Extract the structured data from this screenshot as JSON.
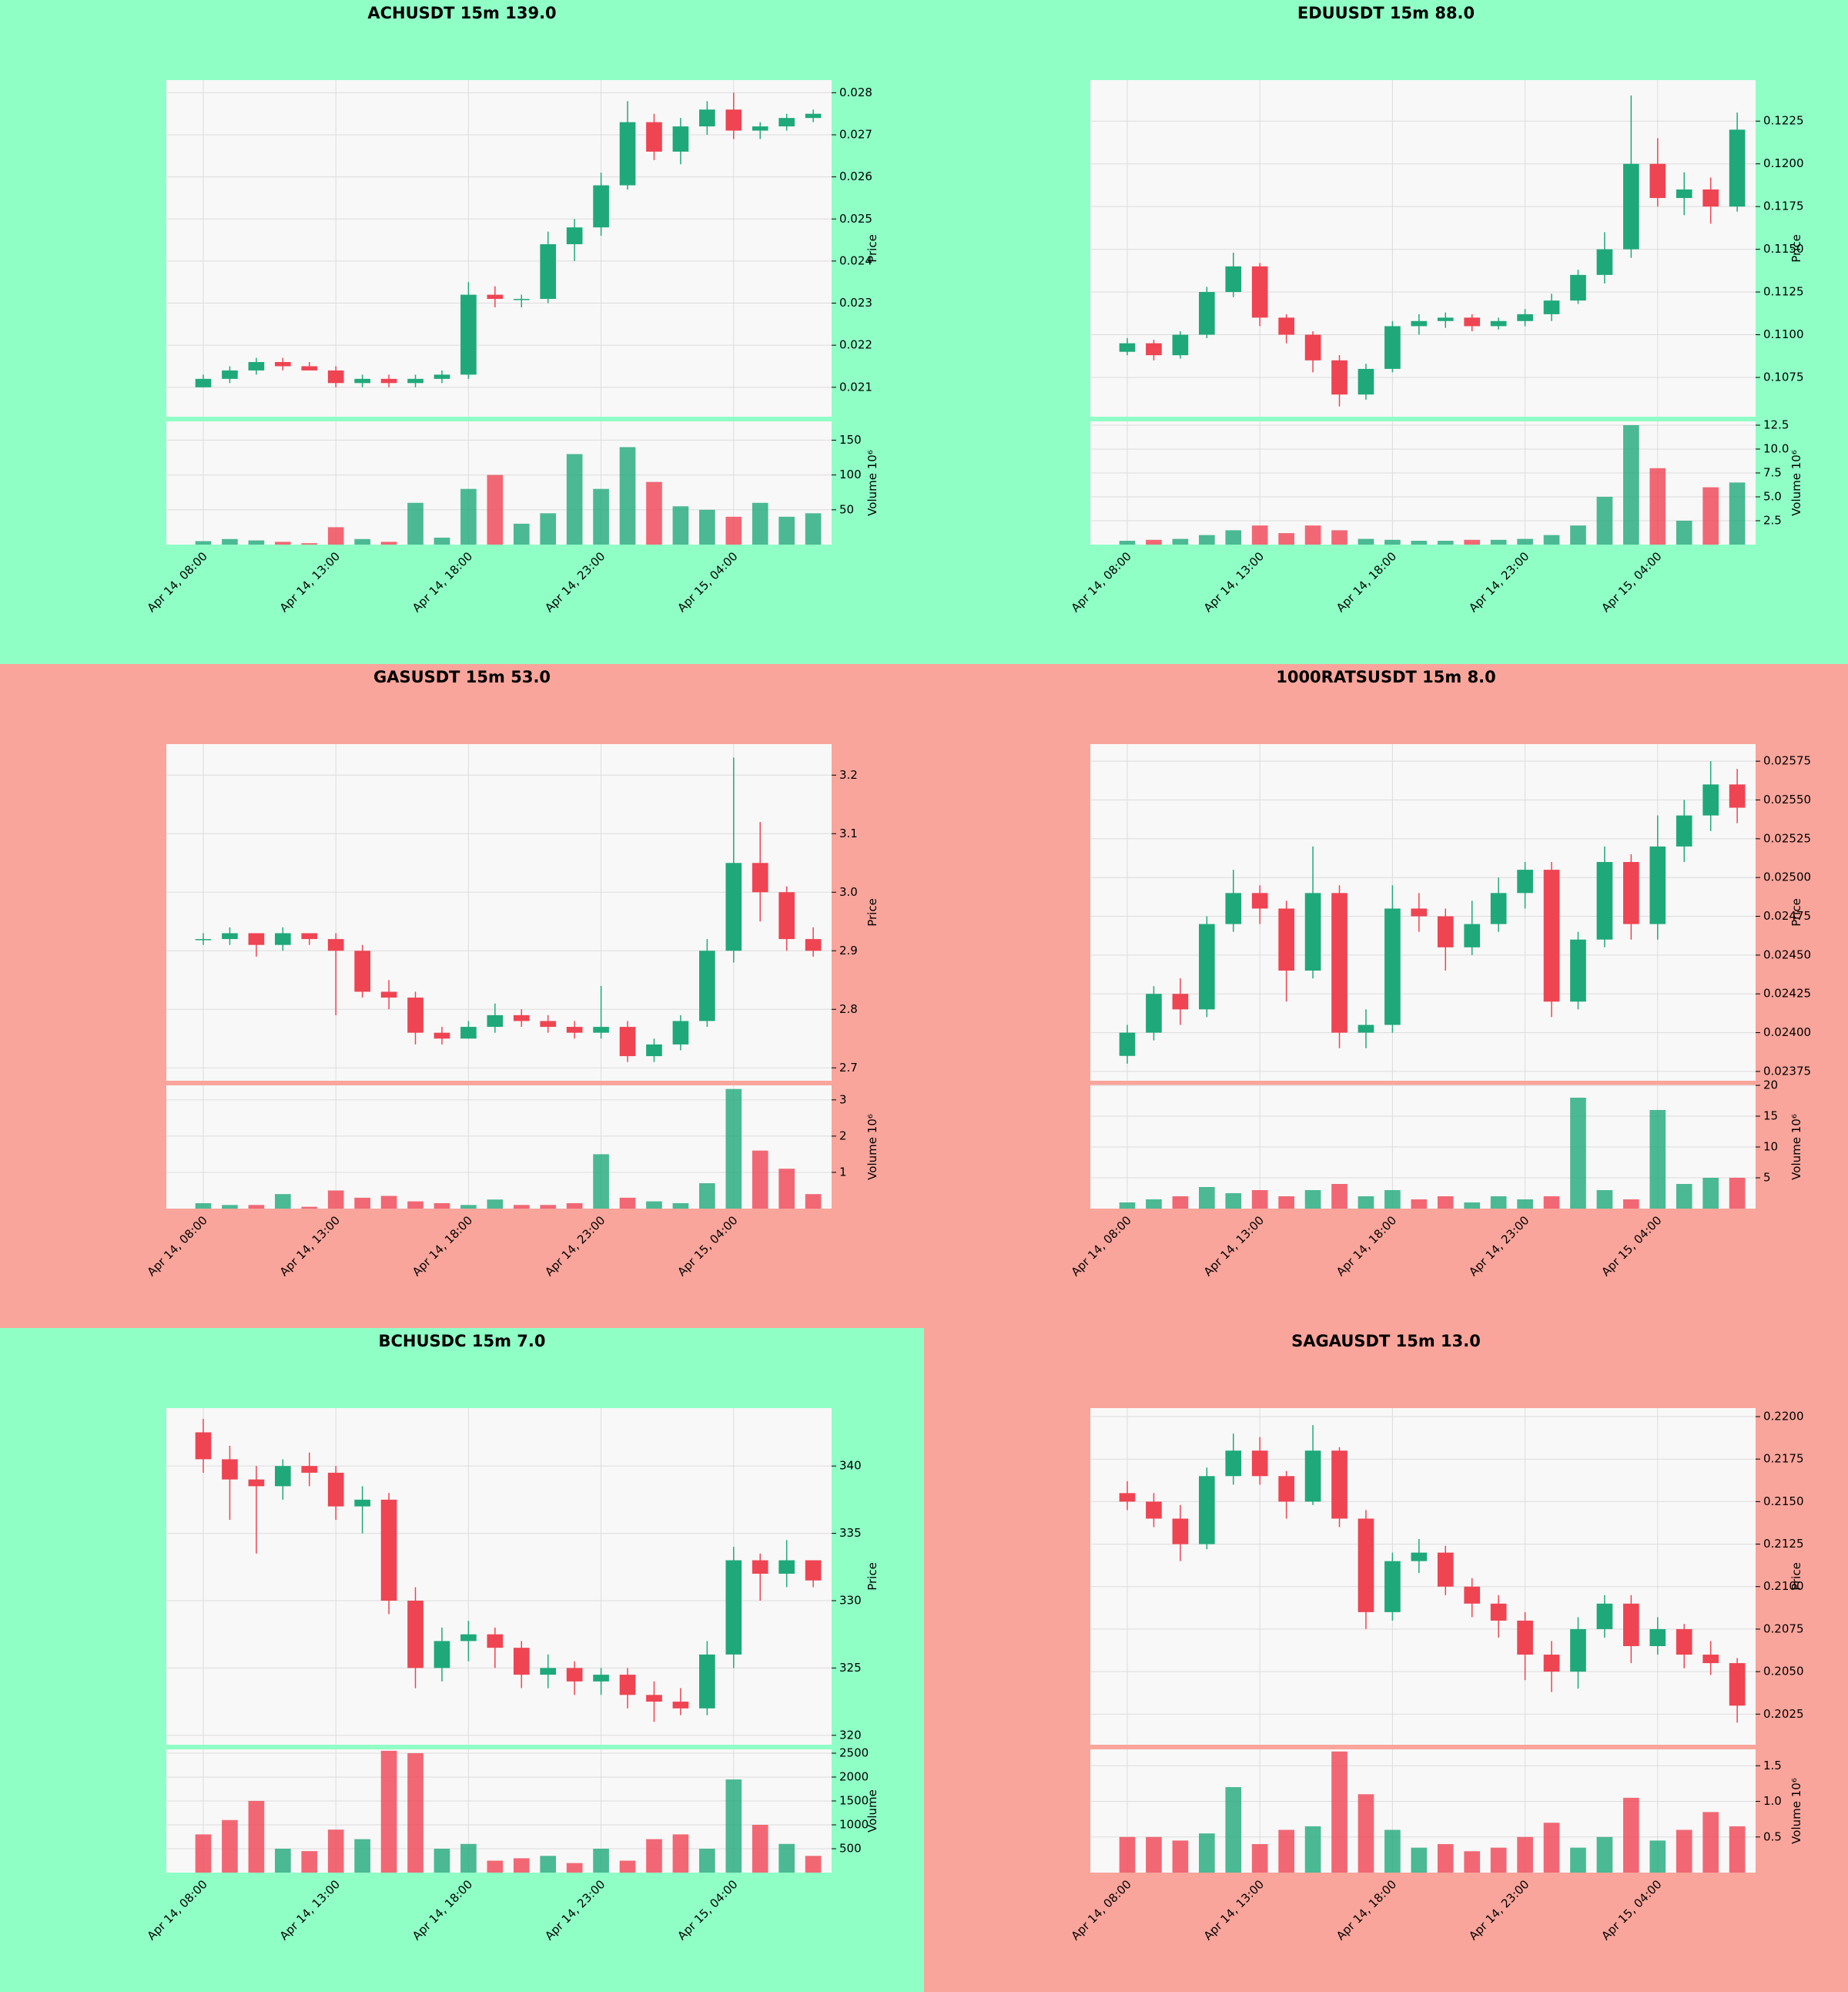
{
  "chart_data": [
    {
      "type": "candlestick",
      "title": "ACHUSDT 15m 139.0",
      "background": "#8fffc6",
      "up_color": "#1fa97a",
      "down_color": "#ef4452",
      "grid": true,
      "categories": [
        "Apr 14, 08:00",
        null,
        null,
        null,
        null,
        "Apr 14, 13:00",
        null,
        null,
        null,
        null,
        "Apr 14, 18:00",
        null,
        null,
        null,
        null,
        "Apr 14, 23:00",
        null,
        null,
        null,
        null,
        "Apr 15, 04:00",
        null,
        null,
        null
      ],
      "open": [
        0.021,
        0.0212,
        0.0214,
        0.0216,
        0.0215,
        0.0214,
        0.0211,
        0.0212,
        0.0211,
        0.0212,
        0.0213,
        0.0232,
        0.0231,
        0.0231,
        0.0244,
        0.0248,
        0.0258,
        0.0273,
        0.0266,
        0.0272,
        0.0276,
        0.0271,
        0.0272,
        0.0274
      ],
      "high": [
        0.0213,
        0.0215,
        0.0217,
        0.0217,
        0.0216,
        0.0215,
        0.0213,
        0.0213,
        0.0213,
        0.0214,
        0.0235,
        0.0234,
        0.0232,
        0.0247,
        0.025,
        0.0261,
        0.0278,
        0.0275,
        0.0274,
        0.0278,
        0.028,
        0.0273,
        0.0275,
        0.0276
      ],
      "low": [
        0.021,
        0.0211,
        0.0213,
        0.0214,
        0.0214,
        0.021,
        0.021,
        0.021,
        0.021,
        0.0211,
        0.0212,
        0.0229,
        0.0229,
        0.023,
        0.024,
        0.0246,
        0.0257,
        0.0264,
        0.0263,
        0.027,
        0.0269,
        0.0269,
        0.0271,
        0.0273
      ],
      "close": [
        0.0212,
        0.0214,
        0.0216,
        0.0215,
        0.0214,
        0.0211,
        0.0212,
        0.0211,
        0.0212,
        0.0213,
        0.0232,
        0.0231,
        0.0231,
        0.0244,
        0.0248,
        0.0258,
        0.0273,
        0.0266,
        0.0272,
        0.0276,
        0.0271,
        0.0272,
        0.0274,
        0.0275
      ],
      "volume": [
        5,
        8,
        6,
        4,
        2,
        25,
        8,
        4,
        60,
        10,
        80,
        100,
        30,
        45,
        130,
        80,
        140,
        90,
        55,
        50,
        40,
        60,
        40,
        45
      ],
      "ylim": [
        0.0203,
        0.0283
      ],
      "yticks": [
        0.021,
        0.022,
        0.023,
        0.024,
        0.025,
        0.026,
        0.027,
        0.028
      ],
      "volume_ylim": [
        0,
        177
      ],
      "volume_yticks": [
        50,
        100,
        150
      ],
      "y_label": "Price",
      "volume_label": "Volume  10⁶"
    },
    {
      "type": "candlestick",
      "title": "EDUUSDT 15m 88.0",
      "background": "#8fffc6",
      "up_color": "#1fa97a",
      "down_color": "#ef4452",
      "grid": true,
      "categories": [
        "Apr 14, 08:00",
        null,
        null,
        null,
        null,
        "Apr 14, 13:00",
        null,
        null,
        null,
        null,
        "Apr 14, 18:00",
        null,
        null,
        null,
        null,
        "Apr 14, 23:00",
        null,
        null,
        null,
        null,
        "Apr 15, 04:00",
        null,
        null,
        null
      ],
      "open": [
        0.109,
        0.1095,
        0.1088,
        0.11,
        0.1125,
        0.114,
        0.111,
        0.11,
        0.1085,
        0.1065,
        0.108,
        0.1105,
        0.1108,
        0.111,
        0.1105,
        0.1108,
        0.1112,
        0.112,
        0.1135,
        0.115,
        0.12,
        0.118,
        0.1185,
        0.1175
      ],
      "high": [
        0.1098,
        0.1097,
        0.1102,
        0.1128,
        0.1148,
        0.1142,
        0.1112,
        0.1102,
        0.1088,
        0.1083,
        0.1108,
        0.1112,
        0.1113,
        0.1112,
        0.111,
        0.1115,
        0.1124,
        0.1138,
        0.116,
        0.124,
        0.1215,
        0.1195,
        0.1192,
        0.123
      ],
      "low": [
        0.1088,
        0.1085,
        0.1086,
        0.1098,
        0.1122,
        0.1105,
        0.1095,
        0.1078,
        0.1058,
        0.1062,
        0.1078,
        0.11,
        0.1104,
        0.1102,
        0.1103,
        0.1105,
        0.1108,
        0.1118,
        0.113,
        0.1145,
        0.1175,
        0.117,
        0.1165,
        0.1172
      ],
      "close": [
        0.1095,
        0.1088,
        0.11,
        0.1125,
        0.114,
        0.111,
        0.11,
        0.1085,
        0.1065,
        0.108,
        0.1105,
        0.1108,
        0.111,
        0.1105,
        0.1108,
        0.1112,
        0.112,
        0.1135,
        0.115,
        0.12,
        0.118,
        0.1185,
        0.1175,
        0.122
      ],
      "volume": [
        0.4,
        0.5,
        0.6,
        1.0,
        1.5,
        2.0,
        1.2,
        2.0,
        1.5,
        0.6,
        0.5,
        0.4,
        0.4,
        0.5,
        0.5,
        0.6,
        1.0,
        2.0,
        5.0,
        12.5,
        8.0,
        2.5,
        6.0,
        6.5
      ],
      "ylim": [
        0.1052,
        0.1249
      ],
      "yticks": [
        0.1075,
        {
          "value": 0.11,
          "label": "0.1100"
        },
        0.1125,
        {
          "value": 0.115,
          "label": "0.1150"
        },
        0.1175,
        {
          "value": 0.12,
          "label": "0.1200"
        },
        0.1225
      ],
      "volume_ylim": [
        0,
        12.9
      ],
      "volume_yticks": [
        2.5,
        {
          "value": 5,
          "label": "5.0"
        },
        7.5,
        {
          "value": 10,
          "label": "10.0"
        },
        12.5
      ],
      "y_label": "Price",
      "volume_label": "Volume  10⁶"
    },
    {
      "type": "candlestick",
      "title": "GASUSDT 15m 53.0",
      "background": "#f9a59b",
      "up_color": "#1fa97a",
      "down_color": "#ef4452",
      "grid": true,
      "categories": [
        "Apr 14, 08:00",
        null,
        null,
        null,
        null,
        "Apr 14, 13:00",
        null,
        null,
        null,
        null,
        "Apr 14, 18:00",
        null,
        null,
        null,
        null,
        "Apr 14, 23:00",
        null,
        null,
        null,
        null,
        "Apr 15, 04:00",
        null,
        null,
        null
      ],
      "open": [
        2.92,
        2.92,
        2.93,
        2.91,
        2.93,
        2.92,
        2.9,
        2.83,
        2.82,
        2.76,
        2.75,
        2.77,
        2.79,
        2.78,
        2.77,
        2.76,
        2.77,
        2.72,
        2.74,
        2.78,
        2.9,
        3.05,
        3.0,
        2.92
      ],
      "high": [
        2.93,
        2.94,
        2.93,
        2.94,
        2.93,
        2.93,
        2.91,
        2.85,
        2.83,
        2.77,
        2.78,
        2.81,
        2.8,
        2.79,
        2.78,
        2.84,
        2.78,
        2.75,
        2.79,
        2.92,
        3.23,
        3.12,
        3.01,
        2.94
      ],
      "low": [
        2.91,
        2.91,
        2.89,
        2.9,
        2.91,
        2.79,
        2.82,
        2.8,
        2.74,
        2.74,
        2.75,
        2.76,
        2.77,
        2.76,
        2.75,
        2.75,
        2.71,
        2.71,
        2.73,
        2.77,
        2.88,
        2.95,
        2.9,
        2.89
      ],
      "close": [
        2.92,
        2.93,
        2.91,
        2.93,
        2.92,
        2.9,
        2.83,
        2.82,
        2.76,
        2.75,
        2.77,
        2.79,
        2.78,
        2.77,
        2.76,
        2.77,
        2.72,
        2.74,
        2.78,
        2.9,
        3.05,
        3.0,
        2.92,
        2.9
      ],
      "volume": [
        0.15,
        0.1,
        0.1,
        0.4,
        0.05,
        0.5,
        0.3,
        0.35,
        0.2,
        0.15,
        0.1,
        0.25,
        0.1,
        0.1,
        0.15,
        1.5,
        0.3,
        0.2,
        0.15,
        0.7,
        3.3,
        1.6,
        1.1,
        0.4
      ],
      "ylim": [
        2.678,
        3.253
      ],
      "yticks": [
        2.7,
        2.8,
        2.9,
        {
          "value": 3,
          "label": "3.0"
        },
        3.1,
        3.2
      ],
      "volume_ylim": [
        0,
        3.4
      ],
      "volume_yticks": [
        1,
        2,
        3
      ],
      "y_label": "Price",
      "volume_label": "Volume  10⁶"
    },
    {
      "type": "candlestick",
      "title": "1000RATSUSDT 15m 8.0",
      "background": "#f9a59b",
      "up_color": "#1fa97a",
      "down_color": "#ef4452",
      "grid": true,
      "categories": [
        "Apr 14, 08:00",
        null,
        null,
        null,
        null,
        "Apr 14, 13:00",
        null,
        null,
        null,
        null,
        "Apr 14, 18:00",
        null,
        null,
        null,
        null,
        "Apr 14, 23:00",
        null,
        null,
        null,
        null,
        "Apr 15, 04:00",
        null,
        null,
        null
      ],
      "open": [
        0.02385,
        0.024,
        0.02425,
        0.02415,
        0.0247,
        0.0249,
        0.0248,
        0.0244,
        0.0249,
        0.024,
        0.02405,
        0.0248,
        0.02475,
        0.02455,
        0.0247,
        0.0249,
        0.02505,
        0.0242,
        0.0246,
        0.0251,
        0.0247,
        0.0252,
        0.0254,
        0.0256
      ],
      "high": [
        0.02405,
        0.0243,
        0.02435,
        0.02475,
        0.02505,
        0.02495,
        0.02485,
        0.0252,
        0.02495,
        0.02415,
        0.02495,
        0.0249,
        0.0248,
        0.02485,
        0.025,
        0.0251,
        0.0251,
        0.02465,
        0.0252,
        0.02515,
        0.0254,
        0.0255,
        0.02575,
        0.0257
      ],
      "low": [
        0.0238,
        0.02395,
        0.02405,
        0.0241,
        0.02465,
        0.0247,
        0.0242,
        0.02435,
        0.0239,
        0.0239,
        0.024,
        0.02465,
        0.0244,
        0.0245,
        0.02465,
        0.0248,
        0.0241,
        0.02415,
        0.02455,
        0.0246,
        0.0246,
        0.0251,
        0.0253,
        0.02535
      ],
      "close": [
        0.024,
        0.02425,
        0.02415,
        0.0247,
        0.0249,
        0.0248,
        0.0244,
        0.0249,
        0.024,
        0.02405,
        0.0248,
        0.02475,
        0.02455,
        0.0247,
        0.0249,
        0.02505,
        0.0242,
        0.0246,
        0.0251,
        0.0247,
        0.0252,
        0.0254,
        0.0256,
        0.02545
      ],
      "volume": [
        1,
        1.5,
        2,
        3.5,
        2.5,
        3,
        2,
        3,
        4,
        2,
        3,
        1.5,
        2,
        1,
        2,
        1.5,
        2,
        18,
        3,
        1.5,
        16,
        4,
        5,
        5
      ],
      "ylim": [
        0.02369,
        0.02586
      ],
      "yticks": [
        0.02375,
        {
          "value": 0.024,
          "label": "0.02400"
        },
        0.02425,
        {
          "value": 0.0245,
          "label": "0.02450"
        },
        0.02475,
        {
          "value": 0.025,
          "label": "0.02500"
        },
        0.02525,
        {
          "value": 0.0255,
          "label": "0.02550"
        },
        0.02575
      ],
      "volume_ylim": [
        0,
        20
      ],
      "volume_yticks": [
        5,
        10,
        15,
        20
      ],
      "y_label": "Price",
      "volume_label": "Volume  10⁶"
    },
    {
      "type": "candlestick",
      "title": "BCHUSDC 15m 7.0",
      "background": "#8fffc6",
      "up_color": "#1fa97a",
      "down_color": "#ef4452",
      "grid": true,
      "categories": [
        "Apr 14, 08:00",
        null,
        null,
        null,
        null,
        "Apr 14, 13:00",
        null,
        null,
        null,
        null,
        "Apr 14, 18:00",
        null,
        null,
        null,
        null,
        "Apr 14, 23:00",
        null,
        null,
        null,
        null,
        "Apr 15, 04:00",
        null,
        null,
        null
      ],
      "open": [
        342.5,
        340.5,
        339,
        338.5,
        340,
        339.5,
        337,
        337.5,
        330,
        325,
        327,
        327.5,
        326.5,
        324.5,
        325,
        324,
        324.5,
        323,
        322.5,
        322,
        326,
        333,
        332,
        333
      ],
      "high": [
        343.5,
        341.5,
        340,
        340.5,
        341,
        340,
        338.5,
        338,
        331,
        328,
        328.5,
        328,
        327,
        326,
        325.5,
        325,
        325,
        324,
        323.5,
        327,
        334,
        333.5,
        334.5,
        333
      ],
      "low": [
        339.5,
        336,
        333.5,
        337.5,
        338.5,
        336,
        335,
        329,
        323.5,
        324,
        325.5,
        325,
        323.5,
        323.5,
        323,
        323,
        322,
        321,
        321.5,
        321.5,
        325,
        330,
        331,
        331
      ],
      "close": [
        340.5,
        339,
        338.5,
        340,
        339.5,
        337,
        337.5,
        330,
        325,
        327,
        327.5,
        326.5,
        324.5,
        325,
        324,
        324.5,
        323,
        322.5,
        322,
        326,
        333,
        332,
        333,
        331.5
      ],
      "volume": [
        800,
        1100,
        1500,
        500,
        450,
        900,
        700,
        2550,
        2500,
        500,
        600,
        250,
        300,
        350,
        200,
        500,
        250,
        700,
        800,
        500,
        1950,
        1000,
        600,
        350
      ],
      "ylim": [
        319.3,
        344.3
      ],
      "yticks": [
        320,
        325,
        330,
        335,
        340
      ],
      "volume_ylim": [
        0,
        2580
      ],
      "volume_yticks": [
        500,
        1000,
        1500,
        2000,
        2500
      ],
      "y_label": "Price",
      "volume_label": "Volume"
    },
    {
      "type": "candlestick",
      "title": "SAGAUSDT 15m 13.0",
      "background": "#f9a59b",
      "up_color": "#1fa97a",
      "down_color": "#ef4452",
      "grid": true,
      "categories": [
        "Apr 14, 08:00",
        null,
        null,
        null,
        null,
        "Apr 14, 13:00",
        null,
        null,
        null,
        null,
        "Apr 14, 18:00",
        null,
        null,
        null,
        null,
        "Apr 14, 23:00",
        null,
        null,
        null,
        null,
        "Apr 15, 04:00",
        null,
        null,
        null
      ],
      "open": [
        0.2155,
        0.215,
        0.214,
        0.2125,
        0.2165,
        0.218,
        0.2165,
        0.215,
        0.218,
        0.214,
        0.2085,
        0.2115,
        0.212,
        0.21,
        0.209,
        0.208,
        0.206,
        0.205,
        0.2075,
        0.209,
        0.2065,
        0.2075,
        0.206,
        0.2055
      ],
      "high": [
        0.2162,
        0.2155,
        0.2148,
        0.217,
        0.219,
        0.2188,
        0.2168,
        0.2195,
        0.2182,
        0.2145,
        0.212,
        0.2128,
        0.2124,
        0.2105,
        0.2095,
        0.2085,
        0.2068,
        0.2082,
        0.2095,
        0.2095,
        0.2082,
        0.2078,
        0.2068,
        0.2058
      ],
      "low": [
        0.2145,
        0.2135,
        0.2115,
        0.2122,
        0.216,
        0.216,
        0.214,
        0.2148,
        0.2135,
        0.2075,
        0.208,
        0.2108,
        0.2095,
        0.2082,
        0.207,
        0.2045,
        0.2038,
        0.204,
        0.207,
        0.2055,
        0.206,
        0.2052,
        0.2048,
        0.202
      ],
      "close": [
        0.215,
        0.214,
        0.2125,
        0.2165,
        0.218,
        0.2165,
        0.215,
        0.218,
        0.214,
        0.2085,
        0.2115,
        0.212,
        0.21,
        0.209,
        0.208,
        0.206,
        0.205,
        0.2075,
        0.209,
        0.2065,
        0.2075,
        0.206,
        0.2055,
        0.203
      ],
      "volume": [
        0.5,
        0.5,
        0.45,
        0.55,
        1.2,
        0.4,
        0.6,
        0.65,
        1.7,
        1.1,
        0.6,
        0.35,
        0.4,
        0.3,
        0.35,
        0.5,
        0.7,
        0.35,
        0.5,
        1.05,
        0.45,
        0.6,
        0.85,
        0.65
      ],
      "ylim": [
        0.2007,
        0.2205
      ],
      "yticks": [
        0.2025,
        {
          "value": 0.205,
          "label": "0.2050"
        },
        0.2075,
        {
          "value": 0.21,
          "label": "0.2100"
        },
        0.2125,
        {
          "value": 0.215,
          "label": "0.2150"
        },
        0.2175,
        {
          "value": 0.22,
          "label": "0.2200"
        }
      ],
      "volume_ylim": [
        0,
        1.73
      ],
      "volume_yticks": [
        0.5,
        {
          "value": 1,
          "label": "1.0"
        },
        1.5
      ],
      "y_label": "Price",
      "volume_label": "Volume  10⁶"
    }
  ]
}
